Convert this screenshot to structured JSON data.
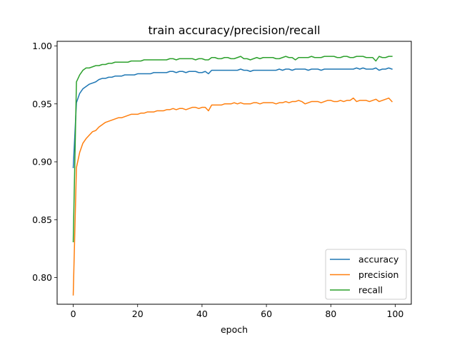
{
  "chart_data": {
    "type": "line",
    "title": "train accuracy/precision/recall",
    "xlabel": "epoch",
    "ylabel": "",
    "xlim": [
      -5,
      105
    ],
    "ylim": [
      0.777,
      1.004
    ],
    "xticks": [
      0,
      20,
      40,
      60,
      80,
      100
    ],
    "xtick_labels": [
      "0",
      "20",
      "40",
      "60",
      "80",
      "100"
    ],
    "yticks": [
      0.8,
      0.85,
      0.9,
      0.95,
      1.0
    ],
    "ytick_labels": [
      "0.80",
      "0.85",
      "0.90",
      "0.95",
      "1.00"
    ],
    "grid": false,
    "legend_position": "bottom-right",
    "x": [
      0,
      1,
      2,
      3,
      4,
      5,
      6,
      7,
      8,
      9,
      10,
      11,
      12,
      13,
      14,
      15,
      16,
      17,
      18,
      19,
      20,
      21,
      22,
      23,
      24,
      25,
      26,
      27,
      28,
      29,
      30,
      31,
      32,
      33,
      34,
      35,
      36,
      37,
      38,
      39,
      40,
      41,
      42,
      43,
      44,
      45,
      46,
      47,
      48,
      49,
      50,
      51,
      52,
      53,
      54,
      55,
      56,
      57,
      58,
      59,
      60,
      61,
      62,
      63,
      64,
      65,
      66,
      67,
      68,
      69,
      70,
      71,
      72,
      73,
      74,
      75,
      76,
      77,
      78,
      79,
      80,
      81,
      82,
      83,
      84,
      85,
      86,
      87,
      88,
      89,
      90,
      91,
      92,
      93,
      94,
      95,
      96,
      97,
      98,
      99
    ],
    "series": [
      {
        "name": "accuracy",
        "color": "#1f77b4",
        "values": [
          0.895,
          0.951,
          0.959,
          0.963,
          0.965,
          0.967,
          0.968,
          0.969,
          0.971,
          0.972,
          0.972,
          0.973,
          0.973,
          0.974,
          0.974,
          0.974,
          0.975,
          0.975,
          0.975,
          0.975,
          0.976,
          0.976,
          0.976,
          0.976,
          0.976,
          0.977,
          0.977,
          0.977,
          0.977,
          0.977,
          0.978,
          0.978,
          0.977,
          0.978,
          0.978,
          0.977,
          0.978,
          0.978,
          0.978,
          0.977,
          0.977,
          0.978,
          0.976,
          0.979,
          0.979,
          0.979,
          0.979,
          0.979,
          0.979,
          0.979,
          0.979,
          0.979,
          0.98,
          0.979,
          0.979,
          0.978,
          0.979,
          0.979,
          0.979,
          0.979,
          0.979,
          0.979,
          0.979,
          0.979,
          0.98,
          0.979,
          0.98,
          0.98,
          0.979,
          0.98,
          0.98,
          0.98,
          0.98,
          0.979,
          0.98,
          0.98,
          0.98,
          0.979,
          0.98,
          0.98,
          0.98,
          0.98,
          0.98,
          0.98,
          0.98,
          0.98,
          0.98,
          0.98,
          0.981,
          0.98,
          0.981,
          0.98,
          0.98,
          0.98,
          0.981,
          0.979,
          0.98,
          0.98,
          0.981,
          0.98
        ]
      },
      {
        "name": "precision",
        "color": "#ff7f0e",
        "values": [
          0.785,
          0.895,
          0.908,
          0.916,
          0.92,
          0.923,
          0.926,
          0.927,
          0.93,
          0.932,
          0.934,
          0.935,
          0.936,
          0.937,
          0.938,
          0.938,
          0.939,
          0.94,
          0.941,
          0.941,
          0.941,
          0.942,
          0.942,
          0.943,
          0.943,
          0.943,
          0.944,
          0.944,
          0.944,
          0.945,
          0.945,
          0.946,
          0.945,
          0.946,
          0.946,
          0.945,
          0.946,
          0.947,
          0.947,
          0.946,
          0.947,
          0.947,
          0.944,
          0.949,
          0.949,
          0.949,
          0.949,
          0.95,
          0.95,
          0.95,
          0.951,
          0.95,
          0.951,
          0.95,
          0.95,
          0.95,
          0.951,
          0.951,
          0.95,
          0.951,
          0.951,
          0.951,
          0.951,
          0.95,
          0.951,
          0.951,
          0.952,
          0.951,
          0.952,
          0.952,
          0.953,
          0.952,
          0.95,
          0.951,
          0.952,
          0.952,
          0.952,
          0.951,
          0.952,
          0.953,
          0.953,
          0.952,
          0.952,
          0.953,
          0.952,
          0.953,
          0.953,
          0.955,
          0.952,
          0.953,
          0.953,
          0.953,
          0.952,
          0.953,
          0.954,
          0.952,
          0.953,
          0.954,
          0.955,
          0.952
        ]
      },
      {
        "name": "recall",
        "color": "#2ca02c",
        "values": [
          0.831,
          0.969,
          0.975,
          0.979,
          0.981,
          0.981,
          0.982,
          0.983,
          0.983,
          0.984,
          0.984,
          0.985,
          0.985,
          0.986,
          0.986,
          0.986,
          0.986,
          0.986,
          0.987,
          0.987,
          0.987,
          0.987,
          0.988,
          0.988,
          0.988,
          0.988,
          0.988,
          0.988,
          0.988,
          0.988,
          0.989,
          0.989,
          0.988,
          0.989,
          0.989,
          0.989,
          0.989,
          0.989,
          0.988,
          0.989,
          0.989,
          0.988,
          0.988,
          0.99,
          0.99,
          0.989,
          0.989,
          0.99,
          0.99,
          0.989,
          0.989,
          0.99,
          0.991,
          0.989,
          0.989,
          0.988,
          0.989,
          0.99,
          0.989,
          0.99,
          0.99,
          0.99,
          0.99,
          0.989,
          0.989,
          0.99,
          0.991,
          0.99,
          0.99,
          0.988,
          0.99,
          0.99,
          0.99,
          0.99,
          0.991,
          0.99,
          0.99,
          0.99,
          0.991,
          0.991,
          0.991,
          0.991,
          0.99,
          0.99,
          0.991,
          0.991,
          0.99,
          0.99,
          0.991,
          0.991,
          0.991,
          0.99,
          0.99,
          0.99,
          0.987,
          0.991,
          0.99,
          0.99,
          0.991,
          0.991
        ]
      }
    ]
  }
}
